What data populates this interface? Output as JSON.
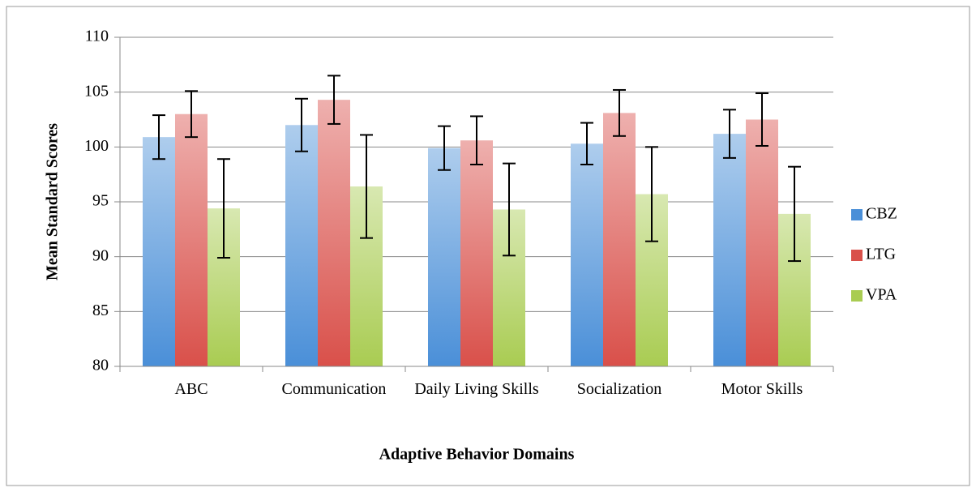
{
  "chart_data": {
    "type": "bar",
    "x_label": "Adaptive Behavior Domains",
    "y_label": "Mean Standard Scores",
    "categories": [
      "ABC",
      "Communication",
      "Daily Living Skills",
      "Socialization",
      "Motor Skills"
    ],
    "series": [
      {
        "name": "CBZ",
        "color": "#4a8fd8",
        "values": [
          100.9,
          102.0,
          99.9,
          100.3,
          101.2
        ],
        "errors": [
          2.0,
          2.4,
          2.0,
          1.9,
          2.2
        ]
      },
      {
        "name": "LTG",
        "color": "#d9504a",
        "values": [
          103.0,
          104.3,
          100.6,
          103.1,
          102.5
        ],
        "errors": [
          2.1,
          2.2,
          2.2,
          2.1,
          2.4
        ]
      },
      {
        "name": "VPA",
        "color": "#a9cc52",
        "values": [
          94.4,
          96.4,
          94.3,
          95.7,
          93.9
        ],
        "errors": [
          4.5,
          4.7,
          4.2,
          4.3,
          4.3
        ]
      }
    ],
    "ylim": [
      80,
      110
    ],
    "yticks": [
      80,
      85,
      90,
      95,
      100,
      105,
      110
    ],
    "grid": true,
    "legend": "right"
  }
}
